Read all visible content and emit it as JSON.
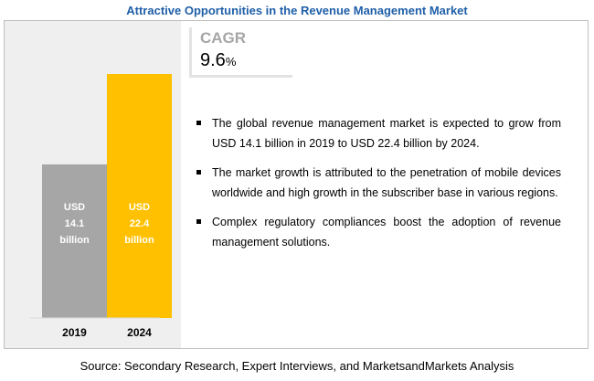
{
  "title": "Attractive Opportunities in the Revenue Management Market",
  "cagr": {
    "label": "CAGR",
    "value": "9.6",
    "unit": "%"
  },
  "bullets": [
    "The global revenue management market is expected to grow from USD 14.1 billion in 2019 to USD 22.4 billion by 2024.",
    "The market growth is attributed to the penetration of mobile devices worldwide and high growth in the subscriber base in various regions.",
    "Complex regulatory compliances boost the adoption of revenue management solutions."
  ],
  "source": "Source: Secondary Research, Expert Interviews, and MarketsandMarkets Analysis",
  "chart_data": {
    "type": "bar",
    "categories": [
      "2019",
      "2024"
    ],
    "values": [
      14.1,
      22.4
    ],
    "data_labels": [
      [
        "USD",
        "14.1",
        "billion"
      ],
      [
        "USD",
        "22.4",
        "billion"
      ]
    ],
    "colors": [
      "#a6a6a6",
      "#ffc000"
    ],
    "ylim": [
      0,
      25
    ],
    "grid": false,
    "legend": "none"
  }
}
